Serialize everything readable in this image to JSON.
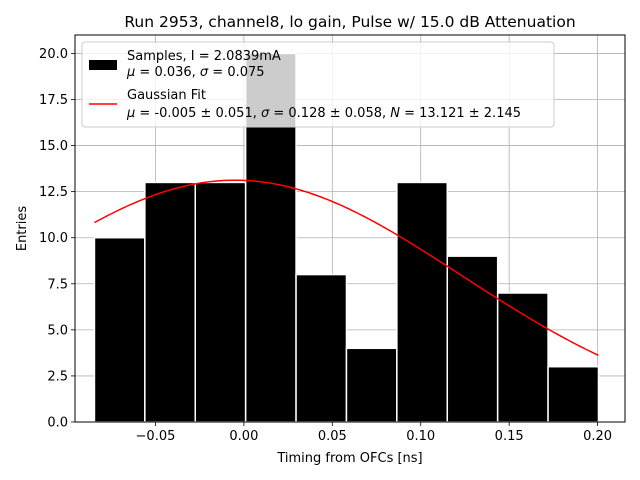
{
  "chart_data": {
    "type": "bar",
    "title": "Run 2953, channel8, lo gain, Pulse w/ 15.0 dB Attenuation",
    "xlabel": "Timing from OFCs [ns]",
    "ylabel": "Entries",
    "xlim": [
      -0.0955,
      0.2155
    ],
    "ylim": [
      0,
      21
    ],
    "grid": true,
    "bin_edges": [
      -0.0845,
      -0.056,
      -0.0275,
      0.001,
      0.0295,
      0.058,
      0.0865,
      0.115,
      0.1435,
      0.172,
      0.2005
    ],
    "counts": [
      10,
      13,
      13,
      20,
      8,
      4,
      13,
      9,
      7,
      3
    ],
    "bar_color": "#000000",
    "bar_edge_color": "#ffffff",
    "x_ticks": [
      {
        "value": -0.05,
        "label": "−0.05"
      },
      {
        "value": 0.0,
        "label": "0.00"
      },
      {
        "value": 0.05,
        "label": "0.05"
      },
      {
        "value": 0.1,
        "label": "0.10"
      },
      {
        "value": 0.15,
        "label": "0.15"
      },
      {
        "value": 0.2,
        "label": "0.20"
      }
    ],
    "y_ticks": [
      {
        "value": 0.0,
        "label": "0.0"
      },
      {
        "value": 2.5,
        "label": "2.5"
      },
      {
        "value": 5.0,
        "label": "5.0"
      },
      {
        "value": 7.5,
        "label": "7.5"
      },
      {
        "value": 10.0,
        "label": "10.0"
      },
      {
        "value": 12.5,
        "label": "12.5"
      },
      {
        "value": 15.0,
        "label": "15.0"
      },
      {
        "value": 17.5,
        "label": "17.5"
      },
      {
        "value": 20.0,
        "label": "20.0"
      }
    ],
    "fit": {
      "name": "Gaussian Fit",
      "mu": -0.005,
      "sigma": 0.128,
      "N": 13.121,
      "x_range": [
        -0.0845,
        0.2005
      ],
      "color": "#ff0000"
    },
    "legend": {
      "position": "top-left",
      "samples_line1": "Samples, I = 2.0839mA",
      "samples_line2_parts": [
        "μ",
        " = 0.036, ",
        "σ",
        " = 0.075"
      ],
      "fit_line1": "Gaussian Fit",
      "fit_line2_parts": [
        "μ",
        " = -0.005 ± 0.051, ",
        "σ",
        " = 0.128 ± 0.058, ",
        "N",
        " = 13.121 ± 2.145"
      ]
    }
  }
}
